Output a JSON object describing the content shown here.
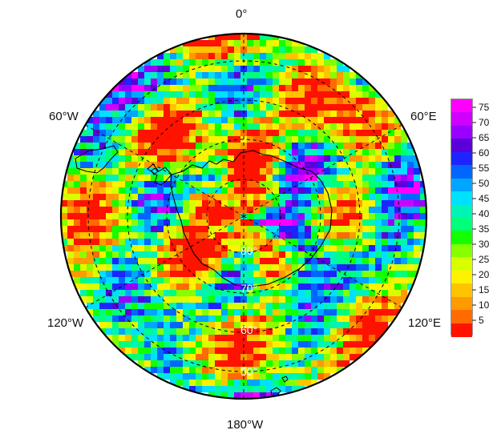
{
  "map": {
    "projection": "south-polar-stereographic",
    "hemisphere": "south",
    "center_latitude": -90,
    "graticule_latitudes": [
      -80,
      -70,
      -60,
      -50
    ],
    "graticule_longitudes": [
      0,
      60,
      120,
      180,
      -120,
      -60
    ],
    "longitude_labels": [
      {
        "key": "top",
        "text": "0°"
      },
      {
        "key": "left-upper",
        "text": "60°W"
      },
      {
        "key": "right-upper",
        "text": "60°E"
      },
      {
        "key": "left-lower",
        "text": "120°W"
      },
      {
        "key": "right-lower",
        "text": "120°E"
      },
      {
        "key": "bottom",
        "text": "180°W"
      }
    ],
    "latitude_labels": [
      {
        "key": "80",
        "text": "80°"
      },
      {
        "key": "70",
        "text": "70°"
      },
      {
        "key": "60",
        "text": "60°"
      },
      {
        "key": "50",
        "text": "50°"
      }
    ],
    "outline": "black",
    "graticule_style": "dashed-black",
    "coastline": "black"
  },
  "legend": {
    "ticks": [
      "75",
      "70",
      "65",
      "60",
      "55",
      "50",
      "45",
      "40",
      "35",
      "30",
      "25",
      "20",
      "15",
      "10",
      "5"
    ],
    "tick_values": [
      75,
      70,
      65,
      60,
      55,
      50,
      45,
      40,
      35,
      30,
      25,
      20,
      15,
      10,
      5
    ],
    "range": [
      0,
      78
    ],
    "colors": [
      "#ff00ff",
      "#d000ff",
      "#9900ff",
      "#5a00d8",
      "#1e24ff",
      "#0066ff",
      "#00a6ff",
      "#00e0ff",
      "#00f4b6",
      "#00ff7a",
      "#13ff00",
      "#86ff00",
      "#d8ff00",
      "#fff200",
      "#ffc400",
      "#ff9a00",
      "#ff6b00",
      "#ff1200"
    ]
  }
}
